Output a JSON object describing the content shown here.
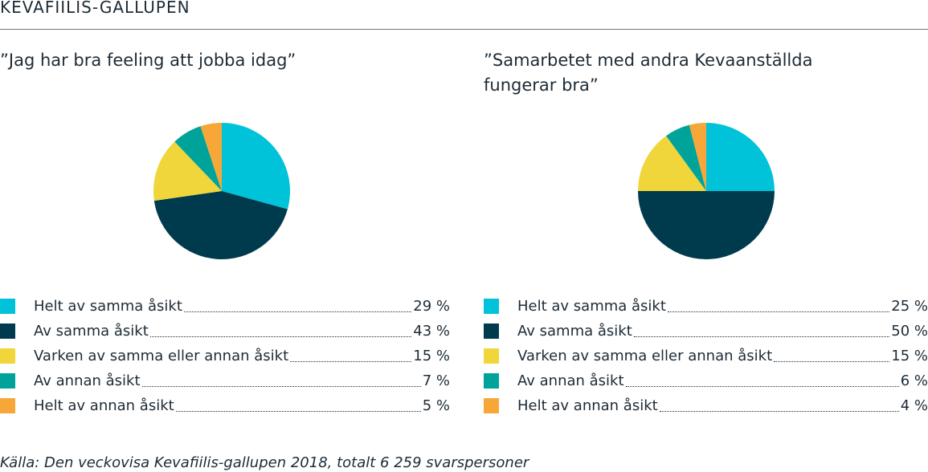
{
  "header": {
    "title": "KEVAFIILIS-GALLUPEN"
  },
  "colors": [
    "#00c3d9",
    "#003b4d",
    "#f0d63a",
    "#00a39a",
    "#f7a738"
  ],
  "chart_data": [
    {
      "type": "pie",
      "title": "”Jag har bra feeling att jobba idag”",
      "categories": [
        "Helt av samma åsikt",
        "Av samma åsikt",
        "Varken av samma eller annan åsikt",
        "Av annan åsikt",
        "Helt av annan åsikt"
      ],
      "values": [
        29,
        43,
        15,
        7,
        5
      ],
      "value_labels": [
        "29 %",
        "43 %",
        "15 %",
        "7 %",
        "5 %"
      ],
      "legend": "bottom"
    },
    {
      "type": "pie",
      "title": "”Samarbetet med andra Kevaanställda fungerar bra”",
      "categories": [
        "Helt av samma åsikt",
        "Av samma åsikt",
        "Varken av samma eller annan åsikt",
        "Av annan åsikt",
        "Helt av annan åsikt"
      ],
      "values": [
        25,
        50,
        15,
        6,
        4
      ],
      "value_labels": [
        "25 %",
        "50 %",
        "15 %",
        "6 %",
        "4 %"
      ],
      "legend": "bottom"
    }
  ],
  "footnote": "Källa: Den veckovisa Kevafiilis-gallupen 2018, totalt 6 259 svarspersoner"
}
